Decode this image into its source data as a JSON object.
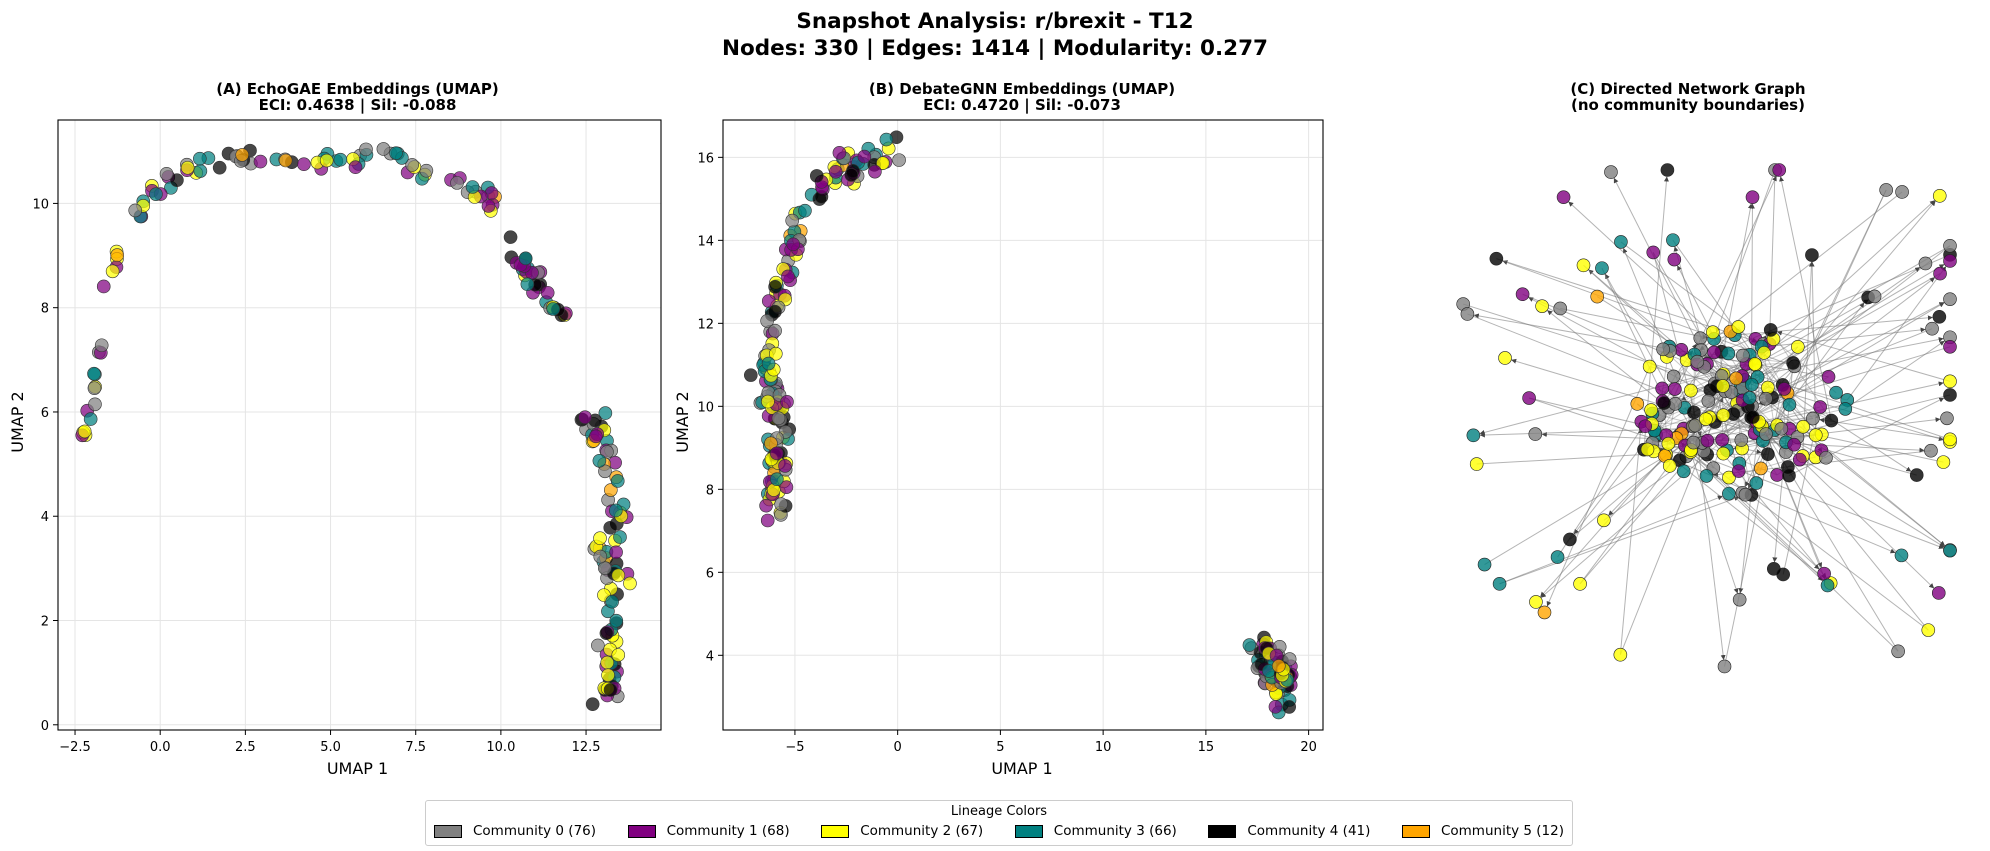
{
  "suptitle": {
    "line1": "Snapshot Analysis: r/brexit - T12",
    "line2": "Nodes: 330 | Edges: 1414 | Modularity: 0.277"
  },
  "community_colors": [
    "#808080",
    "#800080",
    "#ffff00",
    "#008080",
    "#000000",
    "#ffa500"
  ],
  "legend": {
    "title": "Lineage Colors",
    "items": [
      {
        "label": "Community 0 (76)",
        "color": "#808080"
      },
      {
        "label": "Community 1 (68)",
        "color": "#800080"
      },
      {
        "label": "Community 2 (67)",
        "color": "#ffff00"
      },
      {
        "label": "Community 3 (66)",
        "color": "#008080"
      },
      {
        "label": "Community 4 (41)",
        "color": "#000000"
      },
      {
        "label": "Community 5 (12)",
        "color": "#ffa500"
      }
    ]
  },
  "chart_data": [
    {
      "type": "scatter",
      "title_line1": "(A) EchoGAE Embeddings (UMAP)",
      "title_line2": "ECI: 0.4638 | Sil: -0.088",
      "xlabel": "UMAP 1",
      "ylabel": "UMAP 2",
      "xlim": [
        -3.0,
        14.7
      ],
      "ylim": [
        -0.1,
        11.6
      ],
      "xticks": [
        -2.5,
        0.0,
        2.5,
        5.0,
        7.5,
        10.0,
        12.5
      ],
      "xtick_labels": [
        "−2.5",
        "0.0",
        "2.5",
        "5.0",
        "7.5",
        "10.0",
        "12.5"
      ],
      "yticks": [
        0,
        2,
        4,
        6,
        8,
        10
      ],
      "ytick_labels": [
        "0",
        "2",
        "4",
        "6",
        "8",
        "10"
      ],
      "grid": true,
      "clusters": [
        {
          "desc": "left tail",
          "path": [
            [
              -2.3,
              5.5
            ],
            [
              -2.1,
              5.8
            ],
            [
              -1.95,
              6.3
            ],
            [
              -1.85,
              6.8
            ],
            [
              -1.75,
              7.25
            ]
          ],
          "spread": 0.08,
          "n": 14
        },
        {
          "desc": "main arc",
          "path": [
            [
              -1.6,
              8.6
            ],
            [
              -1.0,
              9.5
            ],
            [
              -0.2,
              10.3
            ],
            [
              1.0,
              10.75
            ],
            [
              2.5,
              10.9
            ],
            [
              4.0,
              10.9
            ],
            [
              5.5,
              10.8
            ],
            [
              7.0,
              10.9
            ],
            [
              8.5,
              10.5
            ],
            [
              9.7,
              10.1
            ],
            [
              10.4,
              9.2
            ],
            [
              11.0,
              8.5
            ],
            [
              11.9,
              7.7
            ]
          ],
          "spread": 0.18,
          "n": 110
        },
        {
          "desc": "right column",
          "path": [
            [
              12.5,
              5.9
            ],
            [
              13.3,
              5.2
            ],
            [
              13.4,
              4.0
            ],
            [
              12.8,
              3.4
            ],
            [
              13.5,
              2.9
            ],
            [
              13.0,
              2.0
            ],
            [
              13.3,
              1.2
            ],
            [
              13.0,
              0.5
            ]
          ],
          "spread": 0.3,
          "n": 90
        }
      ]
    },
    {
      "type": "scatter",
      "title_line1": "(B) DebateGNN Embeddings (UMAP)",
      "title_line2": "ECI: 0.4720 | Sil: -0.073",
      "xlabel": "UMAP 1",
      "ylabel": "UMAP 2",
      "xlim": [
        -8.5,
        20.7
      ],
      "ylim": [
        2.2,
        16.9
      ],
      "xticks": [
        -5,
        0,
        5,
        10,
        15,
        20
      ],
      "xtick_labels": [
        "−5",
        "0",
        "5",
        "10",
        "15",
        "20"
      ],
      "yticks": [
        4,
        6,
        8,
        10,
        12,
        14,
        16
      ],
      "ytick_labels": [
        "4",
        "6",
        "8",
        "10",
        "12",
        "14",
        "16"
      ],
      "grid": true,
      "clusters": [
        {
          "desc": "upper arc",
          "path": [
            [
              -0.2,
              16.2
            ],
            [
              -2.0,
              15.8
            ],
            [
              -3.8,
              15.3
            ],
            [
              -5.0,
              14.2
            ],
            [
              -5.5,
              13.0
            ],
            [
              -6.2,
              11.8
            ]
          ],
          "spread": 0.35,
          "n": 80
        },
        {
          "desc": "lower left band",
          "path": [
            [
              -6.6,
              11.0
            ],
            [
              -6.0,
              10.2
            ],
            [
              -5.6,
              9.2
            ],
            [
              -6.2,
              8.4
            ],
            [
              -5.7,
              7.4
            ]
          ],
          "spread": 0.5,
          "n": 95
        },
        {
          "desc": "bottom right cluster",
          "path": [
            [
              17.5,
              4.1
            ],
            [
              18.5,
              3.6
            ],
            [
              18.8,
              3.0
            ]
          ],
          "spread": 0.55,
          "n": 70
        }
      ]
    },
    {
      "type": "network",
      "title_line1": "(C) Directed Network Graph",
      "title_line2": "(no community boundaries)",
      "nodes": 330,
      "edges": 1414,
      "directed": true
    }
  ]
}
